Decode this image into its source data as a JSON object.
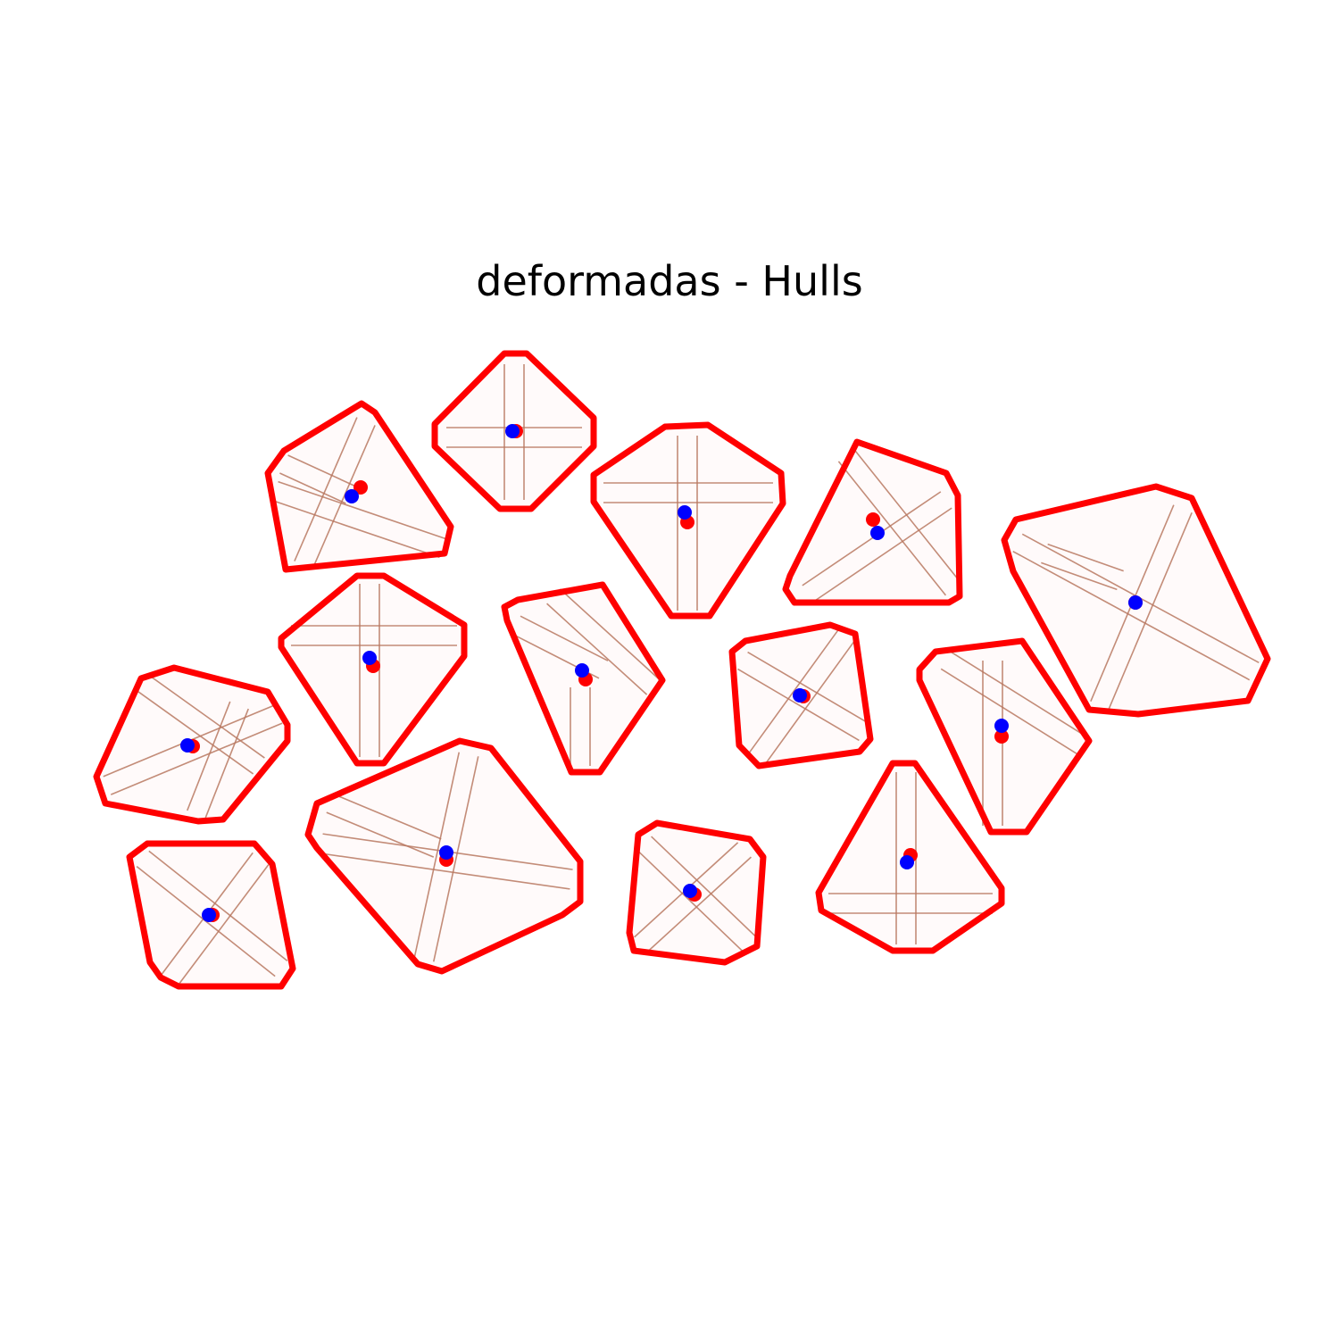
{
  "title": "deformadas - Hulls",
  "colors": {
    "background": "#ffffff",
    "hull_outline": "#ff0000",
    "cross_line": "#b87860",
    "shape_fill": "#fffafa",
    "centroid_a": "#ff0000",
    "centroid_b": "#0000ff"
  },
  "shape_count": 14
}
